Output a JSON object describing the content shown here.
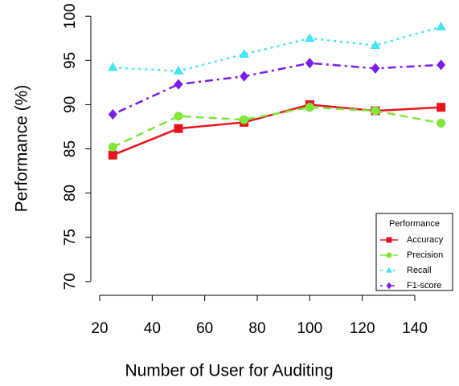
{
  "chart_data": {
    "type": "line",
    "xlabel": "Number of User for Auditing",
    "ylabel": "Performance (%)",
    "x": [
      25,
      50,
      75,
      100,
      125,
      150
    ],
    "series": [
      {
        "name": "Accuracy",
        "color": "#e8141c",
        "marker": "square",
        "dash": "solid",
        "values": [
          84.3,
          87.3,
          88.0,
          90.0,
          89.3,
          89.7
        ]
      },
      {
        "name": "Precision",
        "color": "#7ee83a",
        "marker": "circle",
        "dash": "dashed",
        "values": [
          85.2,
          88.7,
          88.3,
          89.7,
          89.3,
          87.9
        ]
      },
      {
        "name": "Recall",
        "color": "#44e6f4",
        "marker": "triangle",
        "dash": "dotted",
        "values": [
          94.2,
          93.8,
          95.7,
          97.5,
          96.7,
          98.8
        ]
      },
      {
        "name": "F1-score",
        "color": "#7a1ee8",
        "marker": "diamond",
        "dash": "dotdash",
        "values": [
          88.9,
          92.3,
          93.2,
          94.7,
          94.1,
          94.5
        ]
      }
    ],
    "legend_title": "Performance",
    "legend": "bottom-right",
    "xlim": [
      20,
      155
    ],
    "xticks": [
      20,
      40,
      60,
      80,
      100,
      120,
      140
    ],
    "ylim": [
      68.8,
      101.2
    ],
    "yticks": [
      70,
      75,
      80,
      85,
      90,
      95,
      100
    ]
  }
}
